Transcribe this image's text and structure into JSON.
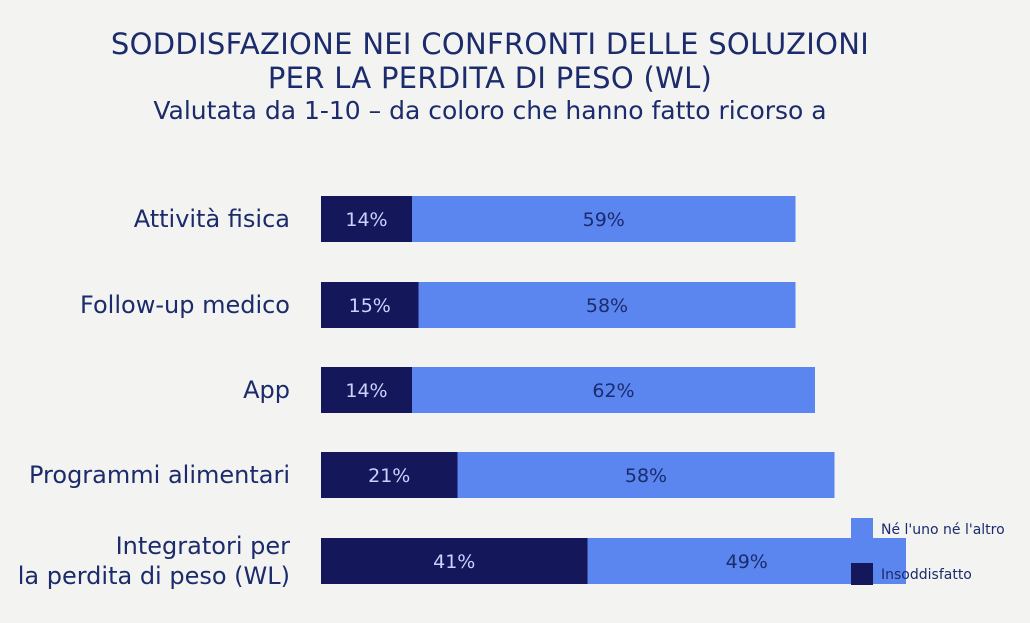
{
  "chart_data": {
    "type": "bar",
    "orientation": "horizontal",
    "stacked": true,
    "title": "SODDISFAZIONE NEI CONFRONTI DELLE SOLUZIONI\nPER LA PERDITA DI PESO (WL)",
    "title_lines": [
      "SODDISFAZIONE NEI CONFRONTI DELLE SOLUZIONI",
      "PER LA PERDITA DI PESO (WL)"
    ],
    "subtitle": "Valutata da 1-10 – da coloro che hanno fatto ricorso a",
    "categories": [
      [
        "Attività fisica"
      ],
      [
        "Follow-up medico"
      ],
      [
        "App"
      ],
      [
        "Programmi alimentari"
      ],
      [
        "Integratori per",
        "la perdita di peso (WL)"
      ]
    ],
    "series": [
      {
        "name": "Insoddisfatto",
        "color": "#14175a",
        "label_color": "#c9d3ff",
        "values": [
          14,
          15,
          14,
          21,
          41
        ],
        "labels": [
          "14%",
          "15%",
          "14%",
          "21%",
          "41%"
        ]
      },
      {
        "name": "Né l'uno né l'altro",
        "color": "#5b86f0",
        "label_color": "#1b2b6b",
        "values": [
          59,
          58,
          62,
          58,
          49
        ],
        "labels": [
          "59%",
          "58%",
          "62%",
          "58%",
          "49%"
        ]
      }
    ],
    "legend": {
      "position": "bottom-right",
      "order": [
        "Né l'uno né l'altro",
        "Insoddisfatto"
      ]
    },
    "xlim": [
      0,
      100
    ],
    "grid": false
  }
}
